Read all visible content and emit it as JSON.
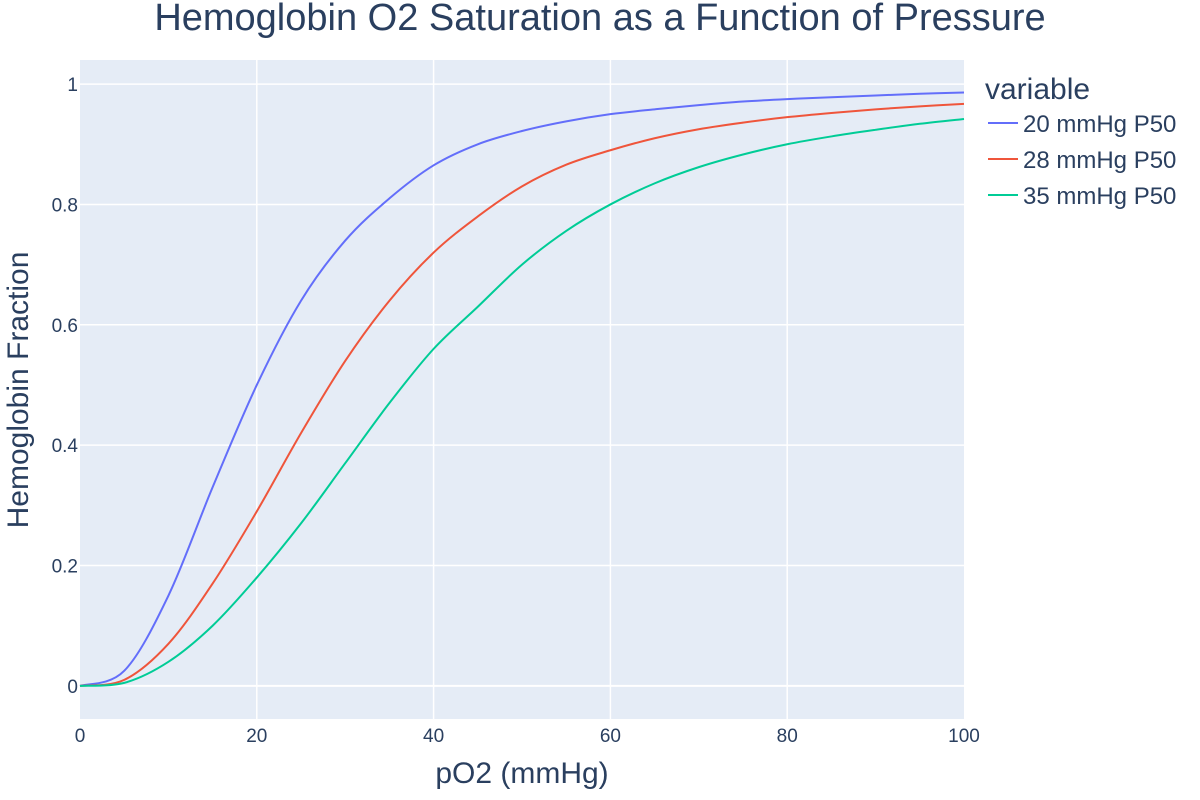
{
  "chart_data": {
    "type": "line",
    "title": "Hemoglobin O2 Saturation as a Function of Pressure",
    "xlabel": "pO2 (mmHg)",
    "ylabel": "Hemoglobin Fraction",
    "xlim": [
      0,
      100
    ],
    "ylim": [
      -0.055,
      1.04
    ],
    "x_ticks": [
      0,
      20,
      40,
      60,
      80,
      100
    ],
    "x_tick_labels": [
      "0",
      "20",
      "40",
      "60",
      "80",
      "100"
    ],
    "y_ticks": [
      0,
      0.2,
      0.4,
      0.6,
      0.8,
      1
    ],
    "y_tick_labels": [
      "0",
      "0.2",
      "0.4",
      "0.6",
      "0.8",
      "1"
    ],
    "grid": true,
    "plot_background": "#e5ecf6",
    "grid_color": "#ffffff",
    "legend": {
      "title": "variable",
      "placement": "right"
    },
    "x": [
      0,
      5,
      10,
      15,
      20,
      25,
      30,
      35,
      40,
      45,
      50,
      55,
      60,
      65,
      70,
      75,
      80,
      85,
      90,
      95,
      100
    ],
    "series": [
      {
        "name": "20 mmHg P50",
        "color": "#636efa",
        "values": [
          0,
          0.025,
          0.15,
          0.33,
          0.5,
          0.64,
          0.74,
          0.81,
          0.865,
          0.9,
          0.922,
          0.938,
          0.95,
          0.958,
          0.965,
          0.971,
          0.975,
          0.978,
          0.981,
          0.984,
          0.986
        ]
      },
      {
        "name": "28 mmHg P50",
        "color": "#ef553b",
        "values": [
          0,
          0.01,
          0.07,
          0.17,
          0.29,
          0.42,
          0.54,
          0.64,
          0.72,
          0.78,
          0.83,
          0.866,
          0.89,
          0.91,
          0.925,
          0.936,
          0.945,
          0.952,
          0.958,
          0.963,
          0.967
        ]
      },
      {
        "name": "35 mmHg P50",
        "color": "#00cc96",
        "values": [
          0,
          0.005,
          0.04,
          0.1,
          0.18,
          0.27,
          0.37,
          0.47,
          0.56,
          0.63,
          0.7,
          0.756,
          0.8,
          0.835,
          0.862,
          0.883,
          0.9,
          0.913,
          0.924,
          0.934,
          0.942
        ]
      }
    ]
  }
}
